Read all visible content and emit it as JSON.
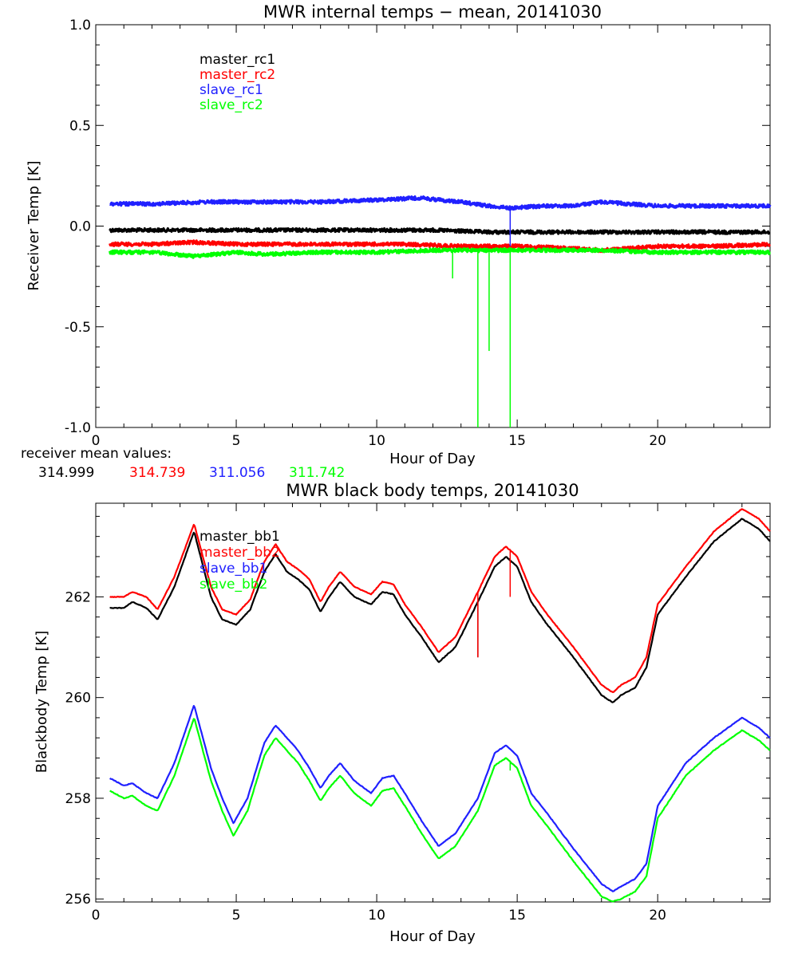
{
  "chart_data": [
    {
      "type": "line",
      "title": "MWR internal temps − mean, 20141030",
      "xlabel": "Hour of Day",
      "ylabel": "Receiver Temp [K]",
      "xlim": [
        0,
        24
      ],
      "ylim": [
        -1.0,
        1.0
      ],
      "xticks": [
        "0",
        "5",
        "10",
        "15",
        "20"
      ],
      "yticks": [
        "1.0",
        "0.5",
        "0.0",
        "-0.5",
        "-1.0"
      ],
      "grid": false,
      "legend_position": "top-left",
      "series": [
        {
          "name": "master_rc1",
          "color": "#000000",
          "x": [
            0.5,
            2,
            4,
            6,
            8,
            10,
            12,
            14,
            16,
            18,
            20,
            22,
            24
          ],
          "y": [
            -0.02,
            -0.02,
            -0.02,
            -0.02,
            -0.02,
            -0.02,
            -0.02,
            -0.03,
            -0.03,
            -0.03,
            -0.03,
            -0.03,
            -0.03
          ]
        },
        {
          "name": "master_rc2",
          "color": "#ff0000",
          "x": [
            0.5,
            2,
            3.5,
            5,
            7,
            9,
            11,
            13,
            15,
            17,
            18,
            20,
            22,
            24
          ],
          "y": [
            -0.09,
            -0.09,
            -0.08,
            -0.09,
            -0.09,
            -0.09,
            -0.09,
            -0.1,
            -0.1,
            -0.11,
            -0.12,
            -0.1,
            -0.1,
            -0.09
          ]
        },
        {
          "name": "slave_rc1",
          "color": "#2020ff",
          "x": [
            0.5,
            2,
            4,
            6,
            8,
            10,
            11.5,
            13,
            14,
            14.7,
            16,
            17,
            18,
            19,
            20,
            22,
            24
          ],
          "y": [
            0.11,
            0.11,
            0.12,
            0.12,
            0.12,
            0.13,
            0.14,
            0.12,
            0.1,
            0.09,
            0.1,
            0.1,
            0.12,
            0.11,
            0.1,
            0.1,
            0.1
          ]
        },
        {
          "name": "slave_rc2",
          "color": "#00ff00",
          "x": [
            0.5,
            2,
            3.5,
            5,
            6,
            8,
            10,
            12,
            14,
            16,
            18,
            20,
            22,
            24
          ],
          "y": [
            -0.13,
            -0.13,
            -0.15,
            -0.13,
            -0.14,
            -0.13,
            -0.13,
            -0.12,
            -0.12,
            -0.12,
            -0.12,
            -0.13,
            -0.13,
            -0.13
          ]
        }
      ],
      "spikes": [
        {
          "series": "slave_rc2",
          "x": 12.7,
          "y": -0.26
        },
        {
          "series": "slave_rc2",
          "x": 13.6,
          "y": -1.0
        },
        {
          "series": "slave_rc2",
          "x": 14.0,
          "y": -0.62
        },
        {
          "series": "slave_rc2",
          "x": 14.75,
          "y": -1.0
        },
        {
          "series": "slave_rc1",
          "x": 14.75,
          "y": -0.1
        }
      ],
      "mean_values": {
        "label": "receiver mean values:",
        "values": [
          {
            "text": "314.999",
            "color": "#000000"
          },
          {
            "text": "314.739",
            "color": "#ff0000"
          },
          {
            "text": "311.056",
            "color": "#2020ff"
          },
          {
            "text": "311.742",
            "color": "#00ff00"
          }
        ]
      }
    },
    {
      "type": "line",
      "title": "MWR black body temps, 20141030",
      "xlabel": "Hour of Day",
      "ylabel": "Blackbody Temp [K]",
      "xlim": [
        0,
        24
      ],
      "ylim": [
        255.94,
        263.86
      ],
      "xticks": [
        "0",
        "5",
        "10",
        "15",
        "20"
      ],
      "yticks": [
        "256",
        "258",
        "260",
        "262"
      ],
      "grid": false,
      "legend_position": "top-left",
      "series": [
        {
          "name": "master_bb1",
          "color": "#000000",
          "x": [
            0.5,
            1,
            1.3,
            1.8,
            2.2,
            2.8,
            3.5,
            4.1,
            4.5,
            5.0,
            5.5,
            6.0,
            6.4,
            6.8,
            7.2,
            7.6,
            8.0,
            8.3,
            8.7,
            9.2,
            9.8,
            10.2,
            10.6,
            11.0,
            11.6,
            12.2,
            12.8,
            13.6,
            14.2,
            14.6,
            15.0,
            15.5,
            16.0,
            17.0,
            18.0,
            18.4,
            18.7,
            19.2,
            19.6,
            20.0,
            21.0,
            22.0,
            23.0,
            23.6,
            24.0
          ],
          "y": [
            261.78,
            261.78,
            261.9,
            261.78,
            261.55,
            262.2,
            263.3,
            262.0,
            261.55,
            261.45,
            261.75,
            262.5,
            262.85,
            262.5,
            262.35,
            262.15,
            261.7,
            262.0,
            262.3,
            262.0,
            261.85,
            262.1,
            262.05,
            261.65,
            261.2,
            260.7,
            261.0,
            261.9,
            262.6,
            262.8,
            262.6,
            261.9,
            261.5,
            260.8,
            260.05,
            259.9,
            260.05,
            260.2,
            260.6,
            261.65,
            262.4,
            263.1,
            263.55,
            263.35,
            263.1
          ]
        },
        {
          "name": "master_bb2",
          "color": "#ff0000",
          "x": [
            0.5,
            1,
            1.3,
            1.8,
            2.2,
            2.8,
            3.5,
            4.1,
            4.5,
            5.0,
            5.5,
            6.0,
            6.4,
            6.8,
            7.2,
            7.6,
            8.0,
            8.3,
            8.7,
            9.2,
            9.8,
            10.2,
            10.6,
            11.0,
            11.6,
            12.2,
            12.8,
            13.6,
            14.2,
            14.6,
            15.0,
            15.5,
            16.0,
            17.0,
            18.0,
            18.4,
            18.7,
            19.2,
            19.6,
            20.0,
            21.0,
            22.0,
            23.0,
            23.6,
            24.0
          ],
          "y": [
            262.0,
            262.0,
            262.1,
            262.0,
            261.75,
            262.4,
            263.45,
            262.2,
            261.75,
            261.65,
            261.95,
            262.7,
            263.05,
            262.7,
            262.55,
            262.35,
            261.9,
            262.2,
            262.5,
            262.2,
            262.05,
            262.3,
            262.25,
            261.85,
            261.4,
            260.9,
            261.2,
            262.1,
            262.8,
            263.0,
            262.8,
            262.1,
            261.7,
            261.0,
            260.25,
            260.1,
            260.25,
            260.4,
            260.8,
            261.85,
            262.6,
            263.3,
            263.75,
            263.55,
            263.3
          ]
        },
        {
          "name": "slave_bb1",
          "color": "#2020ff",
          "x": [
            0.5,
            1,
            1.3,
            1.8,
            2.2,
            2.8,
            3.5,
            4.1,
            4.5,
            4.9,
            5.4,
            6.0,
            6.4,
            6.8,
            7.2,
            7.6,
            8.0,
            8.3,
            8.7,
            9.2,
            9.8,
            10.2,
            10.6,
            11.0,
            11.6,
            12.2,
            12.8,
            13.6,
            14.2,
            14.6,
            15.0,
            15.5,
            16.0,
            17.0,
            18.0,
            18.4,
            18.7,
            19.2,
            19.6,
            20.0,
            21.0,
            22.0,
            23.0,
            23.6,
            24.0
          ],
          "y": [
            258.4,
            258.25,
            258.3,
            258.1,
            258.0,
            258.7,
            259.85,
            258.6,
            258.0,
            257.5,
            258.0,
            259.1,
            259.45,
            259.2,
            258.95,
            258.6,
            258.2,
            258.45,
            258.7,
            258.35,
            258.1,
            258.4,
            258.45,
            258.1,
            257.55,
            257.05,
            257.3,
            258.0,
            258.9,
            259.05,
            258.85,
            258.1,
            257.75,
            257.0,
            256.3,
            256.15,
            256.25,
            256.4,
            256.7,
            257.85,
            258.7,
            259.2,
            259.6,
            259.4,
            259.2
          ]
        },
        {
          "name": "slave_bb2",
          "color": "#00ff00",
          "x": [
            0.5,
            1,
            1.3,
            1.8,
            2.2,
            2.8,
            3.5,
            4.1,
            4.5,
            4.9,
            5.4,
            6.0,
            6.4,
            6.8,
            7.2,
            7.6,
            8.0,
            8.3,
            8.7,
            9.2,
            9.8,
            10.2,
            10.6,
            11.0,
            11.6,
            12.2,
            12.8,
            13.6,
            14.2,
            14.6,
            15.0,
            15.5,
            16.0,
            17.0,
            18.0,
            18.4,
            18.7,
            19.2,
            19.6,
            20.0,
            21.0,
            22.0,
            23.0,
            23.6,
            24.0
          ],
          "y": [
            258.15,
            258.0,
            258.05,
            257.85,
            257.75,
            258.45,
            259.6,
            258.35,
            257.75,
            257.25,
            257.75,
            258.85,
            259.2,
            258.95,
            258.7,
            258.35,
            257.95,
            258.2,
            258.45,
            258.1,
            257.85,
            258.15,
            258.2,
            257.85,
            257.3,
            256.8,
            257.05,
            257.75,
            258.65,
            258.8,
            258.6,
            257.85,
            257.5,
            256.75,
            256.05,
            255.95,
            256.0,
            256.15,
            256.45,
            257.6,
            258.45,
            258.95,
            259.35,
            259.15,
            258.95
          ]
        }
      ],
      "spikes": [
        {
          "series": "master_bb1",
          "x": 13.6,
          "y": 260.8
        },
        {
          "series": "master_bb2",
          "x": 13.6,
          "y": 260.8
        },
        {
          "series": "master_bb2",
          "x": 14.75,
          "y": 262.0
        },
        {
          "series": "slave_bb2",
          "x": 14.75,
          "y": 258.55
        }
      ]
    }
  ]
}
